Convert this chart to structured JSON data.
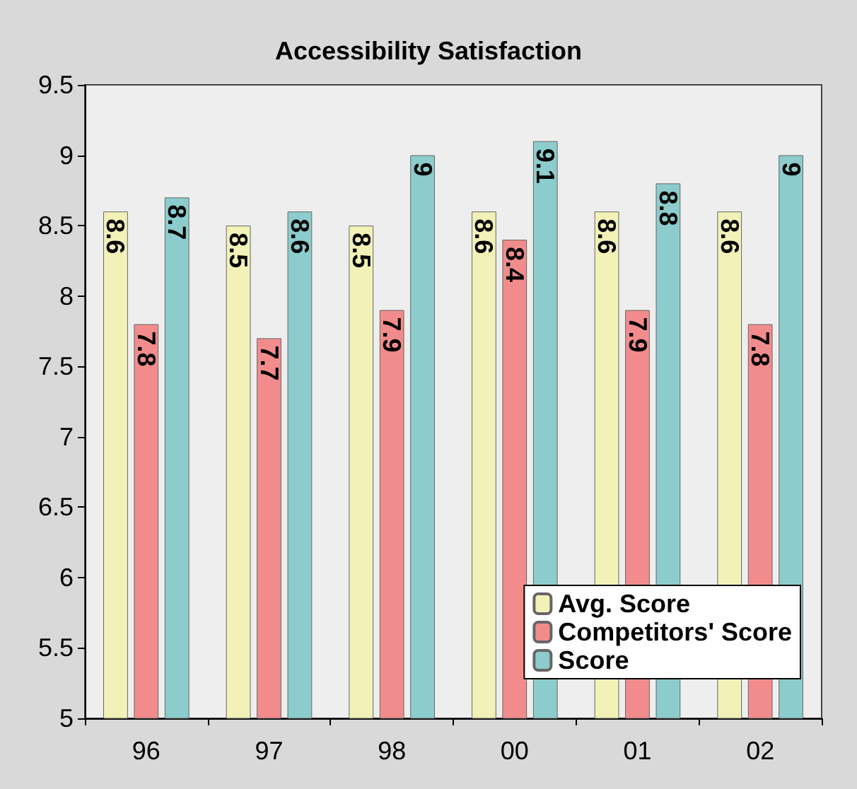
{
  "chart_data": {
    "type": "bar",
    "title": "Accessibility Satisfaction",
    "categories": [
      "96",
      "97",
      "98",
      "00",
      "01",
      "02"
    ],
    "series": [
      {
        "name": "Avg. Score",
        "color": "#f2f2b8",
        "values": [
          8.6,
          8.5,
          8.5,
          8.6,
          8.6,
          8.6
        ]
      },
      {
        "name": "Competitors' Score",
        "color": "#f28c8c",
        "values": [
          7.8,
          7.7,
          7.9,
          8.4,
          7.9,
          7.8
        ]
      },
      {
        "name": "Score",
        "color": "#8ccccc",
        "values": [
          8.7,
          8.6,
          9,
          9.1,
          8.8,
          9
        ]
      }
    ],
    "ylim": [
      5,
      9.5
    ],
    "yticks": [
      5,
      5.5,
      6,
      6.5,
      7,
      7.5,
      8,
      8.5,
      9,
      9.5
    ],
    "data_labels": true,
    "grid": false,
    "legend": "bottom right"
  }
}
